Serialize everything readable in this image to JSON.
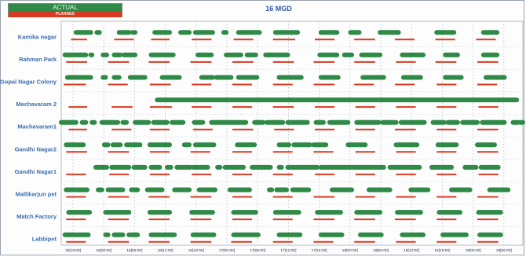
{
  "legend": {
    "actual_label": "ACTUAL",
    "planned_label": "PLANNED"
  },
  "chart_data": {
    "type": "gantt",
    "title": "16 MGD",
    "colors": {
      "actual": "#2e8a46",
      "planned": "#d83a21",
      "label": "#3a6fae"
    },
    "grid": true,
    "x_domain": [
      0,
      3.75
    ],
    "x_ticks": [
      {
        "t": 0,
        "label": "15[18:00]"
      },
      {
        "t": 0.25,
        "label": "16[00:00]"
      },
      {
        "t": 0.5,
        "label": "16[06:00]"
      },
      {
        "t": 0.75,
        "label": "16[12:00]"
      },
      {
        "t": 1.0,
        "label": "16[18:00]"
      },
      {
        "t": 1.25,
        "label": "17[00:00]"
      },
      {
        "t": 1.5,
        "label": "17[06:00]"
      },
      {
        "t": 1.75,
        "label": "17[12:00]"
      },
      {
        "t": 2.0,
        "label": "17[18:00]"
      },
      {
        "t": 2.25,
        "label": "18[00:00]"
      },
      {
        "t": 2.5,
        "label": "18[06:00]"
      },
      {
        "t": 2.75,
        "label": "18[12:00]"
      },
      {
        "t": 3.0,
        "label": "18[18:00]"
      },
      {
        "t": 3.25,
        "label": "19[00:00]"
      },
      {
        "t": 3.5,
        "label": "19[06:00]"
      },
      {
        "t": 3.75,
        "label": "19[12:00]"
      }
    ],
    "rows": [
      {
        "name": "Kamika nagar",
        "actual": [
          [
            0.12,
            0.24
          ],
          [
            0.29,
            0.31
          ],
          [
            0.47,
            0.55
          ],
          [
            0.58,
            0.6
          ],
          [
            0.76,
            0.88
          ],
          [
            0.97,
            1.04
          ],
          [
            1.09,
            1.23
          ],
          [
            1.32,
            1.34
          ],
          [
            1.44,
            1.61
          ],
          [
            1.74,
            1.92
          ],
          [
            2.11,
            2.24
          ],
          [
            2.35,
            2.42
          ],
          [
            2.59,
            2.74
          ],
          [
            3.05,
            3.19
          ],
          [
            3.43,
            3.54
          ]
        ],
        "planned": [
          [
            0.08,
            0.21
          ],
          [
            0.43,
            0.59
          ],
          [
            0.73,
            0.88
          ],
          [
            1.06,
            1.22
          ],
          [
            1.4,
            1.56
          ],
          [
            1.72,
            1.9
          ],
          [
            2.06,
            2.22
          ],
          [
            2.38,
            2.55
          ],
          [
            2.71,
            2.87
          ],
          [
            3.04,
            3.2
          ],
          [
            3.37,
            3.53
          ]
        ]
      },
      {
        "name": "Rahman Park",
        "actual": [
          [
            0.03,
            0.2
          ],
          [
            0.24,
            0.25
          ],
          [
            0.34,
            0.37
          ],
          [
            0.43,
            0.48
          ],
          [
            0.51,
            0.6
          ],
          [
            0.73,
            0.91
          ],
          [
            1.11,
            1.22
          ],
          [
            1.34,
            1.46
          ],
          [
            1.51,
            1.58
          ],
          [
            1.66,
            1.84
          ],
          [
            2.1,
            2.24
          ],
          [
            2.3,
            2.36
          ],
          [
            2.44,
            2.59
          ],
          [
            2.77,
            2.94
          ],
          [
            3.12,
            3.22
          ],
          [
            3.43,
            3.54
          ]
        ],
        "planned": [
          [
            0.04,
            0.21
          ],
          [
            0.38,
            0.55
          ],
          [
            0.71,
            0.88
          ],
          [
            1.05,
            1.22
          ],
          [
            1.39,
            1.56
          ],
          [
            1.72,
            1.89
          ],
          [
            2.05,
            2.22
          ],
          [
            2.38,
            2.55
          ],
          [
            2.72,
            2.88
          ],
          [
            3.04,
            3.21
          ],
          [
            3.38,
            3.55
          ]
        ]
      },
      {
        "name": "Gopal Nagar Colony",
        "actual": [
          [
            0.05,
            0.24
          ],
          [
            0.34,
            0.36
          ],
          [
            0.43,
            0.47
          ],
          [
            0.56,
            0.68
          ],
          [
            0.82,
            0.96
          ],
          [
            1.14,
            1.23
          ],
          [
            1.26,
            1.38
          ],
          [
            1.44,
            1.59
          ],
          [
            1.77,
            1.95
          ],
          [
            2.11,
            2.25
          ],
          [
            2.45,
            2.62
          ],
          [
            2.78,
            2.92
          ],
          [
            3.12,
            3.25
          ],
          [
            3.45,
            3.6
          ]
        ],
        "planned": [
          [
            0.02,
            0.2
          ],
          [
            0.38,
            0.54
          ],
          [
            0.72,
            0.89
          ],
          [
            1.06,
            1.22
          ],
          [
            1.39,
            1.55
          ],
          [
            1.72,
            1.88
          ],
          [
            2.05,
            2.22
          ],
          [
            2.38,
            2.54
          ],
          [
            2.71,
            2.87
          ],
          [
            3.05,
            3.21
          ],
          [
            3.38,
            3.54
          ]
        ]
      },
      {
        "name": "Machavaram 2",
        "actual": [
          [
            0.78,
            3.7
          ]
        ],
        "planned": [
          [
            0.06,
            0.21
          ],
          [
            0.41,
            0.58
          ],
          [
            0.72,
            0.9
          ],
          [
            1.06,
            1.22
          ],
          [
            1.39,
            1.55
          ],
          [
            1.72,
            1.89
          ],
          [
            2.06,
            2.22
          ],
          [
            2.39,
            2.55
          ],
          [
            2.72,
            2.88
          ],
          [
            3.05,
            3.21
          ],
          [
            3.39,
            3.55
          ]
        ]
      },
      {
        "name": "Machavaram1",
        "actual": [
          [
            0.0,
            0.12
          ],
          [
            0.17,
            0.2
          ],
          [
            0.25,
            0.27
          ],
          [
            0.33,
            0.46
          ],
          [
            0.5,
            0.53
          ],
          [
            0.6,
            0.71
          ],
          [
            0.75,
            0.86
          ],
          [
            0.9,
            0.99
          ],
          [
            1.08,
            1.15
          ],
          [
            1.22,
            1.5
          ],
          [
            1.57,
            1.64
          ],
          [
            1.67,
            1.8
          ],
          [
            1.84,
            2.0
          ],
          [
            2.07,
            2.13
          ],
          [
            2.18,
            2.33
          ],
          [
            2.4,
            2.58
          ],
          [
            2.61,
            2.72
          ],
          [
            2.76,
            2.95
          ],
          [
            3.02,
            3.11
          ],
          [
            3.14,
            3.22
          ],
          [
            3.26,
            3.38
          ],
          [
            3.42,
            3.6
          ],
          [
            3.67,
            3.71
          ],
          [
            3.73,
            3.75
          ]
        ],
        "planned": [
          [
            0.06,
            0.21
          ],
          [
            0.41,
            0.57
          ],
          [
            0.72,
            0.88
          ],
          [
            1.07,
            1.23
          ],
          [
            1.39,
            1.56
          ],
          [
            1.73,
            1.89
          ],
          [
            2.06,
            2.22
          ],
          [
            2.39,
            2.55
          ],
          [
            2.71,
            2.88
          ],
          [
            3.05,
            3.21
          ],
          [
            3.38,
            3.55
          ]
        ]
      },
      {
        "name": "Gandhi Nagar2",
        "actual": [
          [
            0.04,
            0.18
          ],
          [
            0.35,
            0.38
          ],
          [
            0.42,
            0.48
          ],
          [
            0.53,
            0.64
          ],
          [
            0.72,
            0.88
          ],
          [
            1.0,
            1.04
          ],
          [
            1.09,
            1.24
          ],
          [
            1.43,
            1.57
          ],
          [
            1.77,
            1.85
          ],
          [
            1.89,
            2.02
          ],
          [
            2.05,
            2.15
          ],
          [
            2.33,
            2.47
          ],
          [
            2.72,
            2.89
          ],
          [
            3.06,
            3.21
          ],
          [
            3.38,
            3.52
          ]
        ],
        "planned": [
          [
            0.04,
            0.21
          ],
          [
            0.38,
            0.55
          ],
          [
            0.72,
            0.88
          ],
          [
            1.05,
            1.21
          ],
          [
            1.39,
            1.55
          ],
          [
            1.72,
            1.88
          ],
          [
            2.05,
            2.21
          ],
          [
            2.39,
            2.55
          ],
          [
            2.72,
            2.88
          ],
          [
            3.05,
            3.21
          ],
          [
            3.38,
            3.55
          ]
        ]
      },
      {
        "name": "Gandhi Nagar1",
        "actual": [
          [
            0.28,
            0.37
          ],
          [
            0.41,
            0.55
          ],
          [
            0.59,
            0.68
          ],
          [
            0.73,
            0.8
          ],
          [
            0.86,
            0.89
          ],
          [
            0.94,
            1.05
          ],
          [
            1.07,
            1.19
          ],
          [
            1.27,
            1.29
          ],
          [
            1.33,
            1.48
          ],
          [
            1.55,
            1.7
          ],
          [
            1.77,
            1.79
          ],
          [
            1.84,
            2.08
          ],
          [
            2.11,
            2.62
          ],
          [
            2.67,
            2.91
          ],
          [
            3.01,
            3.17
          ],
          [
            3.28,
            3.37
          ],
          [
            3.41,
            3.55
          ]
        ],
        "planned": [
          [
            0.04,
            0.2
          ],
          [
            0.39,
            0.55
          ],
          [
            0.72,
            0.88
          ],
          [
            1.06,
            1.22
          ],
          [
            1.39,
            1.55
          ],
          [
            1.72,
            1.88
          ],
          [
            2.06,
            2.22
          ],
          [
            2.39,
            2.55
          ],
          [
            2.72,
            2.88
          ],
          [
            3.05,
            3.21
          ],
          [
            3.39,
            3.55
          ]
        ]
      },
      {
        "name": "Mallikarjun pet",
        "actual": [
          [
            0.04,
            0.21
          ],
          [
            0.3,
            0.33
          ],
          [
            0.38,
            0.5
          ],
          [
            0.57,
            0.62
          ],
          [
            0.7,
            0.82
          ],
          [
            0.92,
            1.04
          ],
          [
            1.12,
            1.25
          ],
          [
            1.37,
            1.53
          ],
          [
            1.69,
            1.71
          ],
          [
            1.75,
            1.83
          ],
          [
            1.88,
            2.01
          ],
          [
            2.2,
            2.36
          ],
          [
            2.5,
            2.67
          ],
          [
            2.84,
            2.98
          ],
          [
            3.17,
            3.32
          ],
          [
            3.48,
            3.63
          ]
        ],
        "planned": [
          [
            0.04,
            0.2
          ],
          [
            0.38,
            0.55
          ],
          [
            0.71,
            0.88
          ],
          [
            1.05,
            1.22
          ],
          [
            1.39,
            1.55
          ],
          [
            1.72,
            1.88
          ],
          [
            2.05,
            2.22
          ],
          [
            2.39,
            2.55
          ],
          [
            2.72,
            2.88
          ],
          [
            3.05,
            3.21
          ],
          [
            3.38,
            3.55
          ]
        ]
      },
      {
        "name": "Match Factory",
        "actual": [
          [
            0.06,
            0.23
          ],
          [
            0.36,
            0.55
          ],
          [
            0.72,
            0.88
          ],
          [
            1.06,
            1.23
          ],
          [
            1.4,
            1.58
          ],
          [
            1.74,
            1.93
          ],
          [
            2.08,
            2.27
          ],
          [
            2.4,
            2.59
          ],
          [
            2.73,
            2.92
          ],
          [
            3.07,
            3.24
          ],
          [
            3.39,
            3.57
          ]
        ],
        "planned": [
          [
            0.04,
            0.2
          ],
          [
            0.38,
            0.55
          ],
          [
            0.71,
            0.88
          ],
          [
            1.05,
            1.22
          ],
          [
            1.39,
            1.55
          ],
          [
            1.72,
            1.88
          ],
          [
            2.05,
            2.22
          ],
          [
            2.38,
            2.55
          ],
          [
            2.71,
            2.88
          ],
          [
            3.05,
            3.21
          ],
          [
            3.38,
            3.55
          ]
        ]
      },
      {
        "name": "Labbipet",
        "actual": [
          [
            0.03,
            0.22
          ],
          [
            0.36,
            0.38
          ],
          [
            0.43,
            0.5
          ],
          [
            0.55,
            0.62
          ],
          [
            0.73,
            0.92
          ],
          [
            1.07,
            1.24
          ],
          [
            1.4,
            1.6
          ],
          [
            1.77,
            1.94
          ],
          [
            2.11,
            2.28
          ],
          [
            2.43,
            2.6
          ],
          [
            2.77,
            2.94
          ],
          [
            3.1,
            3.29
          ],
          [
            3.4,
            3.57
          ]
        ],
        "planned": [
          [
            0.04,
            0.2
          ],
          [
            0.38,
            0.55
          ],
          [
            0.71,
            0.88
          ],
          [
            1.05,
            1.22
          ],
          [
            1.38,
            1.55
          ],
          [
            1.72,
            1.88
          ],
          [
            2.05,
            2.21
          ],
          [
            2.38,
            2.55
          ],
          [
            2.72,
            2.88
          ],
          [
            3.05,
            3.21
          ],
          [
            3.38,
            3.55
          ]
        ]
      }
    ]
  }
}
